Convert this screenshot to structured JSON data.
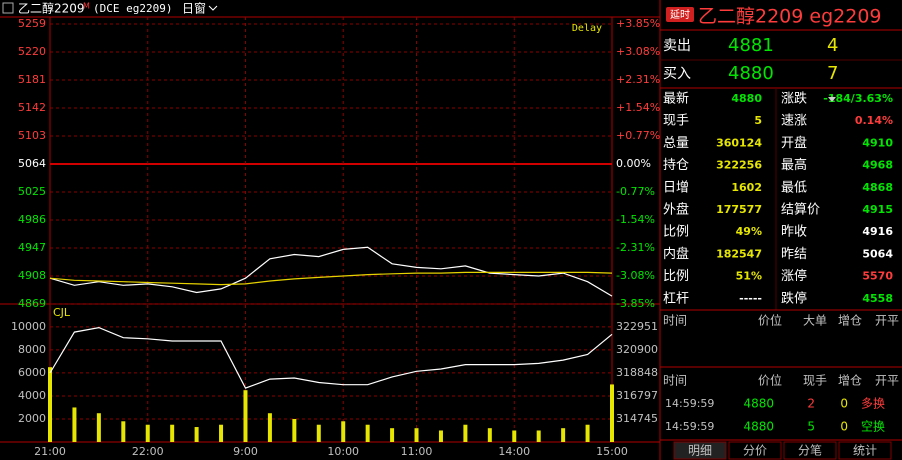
{
  "header": {
    "symbol": "乙二醇2209",
    "flag": "M",
    "code": "(DCE eg2209)",
    "window": "日窗"
  },
  "chart_data": [
    {
      "type": "line",
      "annotation": "Delay",
      "x": [
        "21:00",
        "21:15",
        "21:30",
        "21:45",
        "22:00",
        "22:15",
        "22:30",
        "22:45",
        "9:00",
        "9:15",
        "9:30",
        "9:45",
        "10:00",
        "10:30",
        "10:45",
        "11:00",
        "11:15",
        "13:30",
        "13:45",
        "14:00",
        "14:15",
        "14:30",
        "14:45",
        "15:00"
      ],
      "series": [
        {
          "color": "#ffffff",
          "values": [
            4905,
            4895,
            4900,
            4895,
            4897,
            4893,
            4885,
            4890,
            4905,
            4932,
            4938,
            4935,
            4945,
            4948,
            4925,
            4920,
            4918,
            4922,
            4912,
            4910,
            4908,
            4912,
            4900,
            4880
          ]
        },
        {
          "color": "#e6d200",
          "values": [
            4905,
            4902,
            4901,
            4900,
            4899,
            4898,
            4897,
            4896,
            4897,
            4901,
            4904,
            4906,
            4908,
            4910,
            4911,
            4912,
            4912,
            4913,
            4913,
            4913,
            4913,
            4913,
            4913,
            4912
          ]
        }
      ],
      "ylim": [
        4869,
        5259
      ],
      "yticks": [
        5259,
        5220,
        5181,
        5142,
        5103,
        5064,
        5025,
        4986,
        4947,
        4908,
        4869
      ],
      "y2lim": [
        -3.85,
        3.85
      ],
      "y2ticks": [
        {
          "value": 3.85,
          "label": "+3.85%"
        },
        {
          "value": 3.08,
          "label": "+3.08%"
        },
        {
          "value": 2.31,
          "label": "+2.31%"
        },
        {
          "value": 1.54,
          "label": "+1.54%"
        },
        {
          "value": 0.77,
          "label": "+0.77%"
        },
        {
          "value": 0,
          "label": "0.00%"
        },
        {
          "value": -0.77,
          "label": "-0.77%"
        },
        {
          "value": -1.54,
          "label": "-1.54%"
        },
        {
          "value": -2.31,
          "label": "-2.31%"
        },
        {
          "value": -3.08,
          "label": "-3.08%"
        },
        {
          "value": -3.85,
          "label": "-3.85%"
        }
      ],
      "xticks": [
        "21:00",
        "22:00",
        "9:00",
        "10:00",
        "11:00",
        "14:00",
        "15:00"
      ],
      "grid": true
    },
    {
      "type": "bar",
      "label": "CJL",
      "x": [
        "21:00",
        "21:15",
        "21:30",
        "21:45",
        "22:00",
        "22:15",
        "22:30",
        "22:45",
        "9:00",
        "9:15",
        "9:30",
        "9:45",
        "10:00",
        "10:30",
        "10:45",
        "11:00",
        "11:15",
        "13:30",
        "13:45",
        "14:00",
        "14:15",
        "14:30",
        "14:45",
        "15:00"
      ],
      "series": [
        {
          "color": "#e6e600",
          "values": [
            6500,
            3000,
            2500,
            1800,
            1500,
            1500,
            1300,
            1500,
            4500,
            2500,
            2000,
            1500,
            1800,
            1500,
            1200,
            1200,
            1000,
            1500,
            1200,
            1000,
            1000,
            1200,
            1500,
            5000
          ]
        },
        {
          "color": "#ffffff",
          "axis": "y2",
          "values": [
            318848,
            322500,
            322900,
            322000,
            321900,
            321700,
            321700,
            321700,
            317500,
            318300,
            318400,
            318000,
            317800,
            317800,
            318500,
            319000,
            319200,
            319600,
            319600,
            319600,
            319700,
            320000,
            320500,
            322300
          ]
        }
      ],
      "ylim": [
        0,
        11900
      ],
      "yticks": [
        10000,
        8000,
        6000,
        4000,
        2000
      ],
      "y2lim": [
        312693,
        324913
      ],
      "y2ticks": [
        322951,
        320900,
        318848,
        316797,
        314745
      ],
      "xticks": [
        "21:00",
        "22:00",
        "9:00",
        "10:00",
        "11:00",
        "14:00",
        "15:00"
      ],
      "grid": true
    }
  ],
  "quote": {
    "badge": "延时",
    "title": "乙二醇2209  eg2209",
    "ask": {
      "label": "卖出",
      "price": "4881",
      "qty": "4"
    },
    "bid": {
      "label": "买入",
      "price": "4880",
      "qty": "7"
    },
    "stats": [
      [
        "最新",
        "4880",
        "涨跌",
        "-184/3.63%"
      ],
      [
        "现手",
        "5",
        "速涨",
        "0.14%"
      ],
      [
        "总量",
        "360124",
        "开盘",
        "4910"
      ],
      [
        "持仓",
        "322256",
        "最高",
        "4968"
      ],
      [
        "日增",
        "1602",
        "最低",
        "4868"
      ],
      [
        "外盘",
        "177577",
        "结算价",
        "4915"
      ],
      [
        "比例",
        "49%",
        "昨收",
        "4916"
      ],
      [
        "内盘",
        "182547",
        "昨结",
        "5064"
      ],
      [
        "比例",
        "51%",
        "涨停",
        "5570"
      ],
      [
        "杠杆",
        "-----",
        "跌停",
        "4558"
      ]
    ],
    "big_headers": [
      "时间",
      "价位",
      "大单",
      "增仓",
      "开平"
    ],
    "tick_headers": [
      "时间",
      "价位",
      "现手",
      "增仓",
      "开平"
    ],
    "ticks": [
      [
        "14:59:59",
        "4880",
        "2",
        "0",
        "多换"
      ],
      [
        "14:59:59",
        "4880",
        "5",
        "0",
        "空换"
      ]
    ]
  },
  "tabs": [
    "明细",
    "分价",
    "分笔",
    "统计"
  ]
}
